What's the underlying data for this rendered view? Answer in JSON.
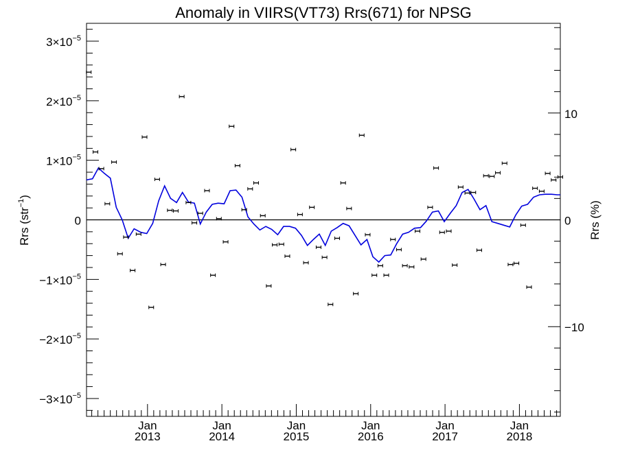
{
  "chart_data": {
    "type": "scatter",
    "title": "Anomaly in VIIRS(VT73) Rrs(671) for NPSG",
    "ylabel": "Rrs (str",
    "ylabel_sup": "−1",
    "ylabel_close": ")",
    "y2label": "Rrs (%)",
    "xlabel": "",
    "ylim": [
      -3.3e-05,
      3.3e-05
    ],
    "y2lim": [
      -18.4,
      18.4
    ],
    "xlim": [
      2012.18,
      2018.55
    ],
    "grid": false,
    "zero_line": true,
    "x_ticks": [
      {
        "x": 2013.0,
        "month": "Jan",
        "year": "2013"
      },
      {
        "x": 2014.0,
        "month": "Jan",
        "year": "2014"
      },
      {
        "x": 2015.0,
        "month": "Jan",
        "year": "2015"
      },
      {
        "x": 2016.0,
        "month": "Jan",
        "year": "2016"
      },
      {
        "x": 2017.0,
        "month": "Jan",
        "year": "2017"
      },
      {
        "x": 2018.0,
        "month": "Jan",
        "year": "2018"
      }
    ],
    "y_ticks": [
      {
        "v": 3e-05,
        "mant": "3×10",
        "exp": "−5"
      },
      {
        "v": 2e-05,
        "mant": "2×10",
        "exp": "−5"
      },
      {
        "v": 1e-05,
        "mant": "1×10",
        "exp": "−5"
      },
      {
        "v": 0,
        "mant": "0",
        "exp": ""
      },
      {
        "v": -1e-05,
        "mant": "−1×10",
        "exp": "−5"
      },
      {
        "v": -2e-05,
        "mant": "−2×10",
        "exp": "−5"
      },
      {
        "v": -3e-05,
        "mant": "−3×10",
        "exp": "−5"
      }
    ],
    "y2_ticks": [
      {
        "v": 10,
        "label": "10"
      },
      {
        "v": 0,
        "label": "0"
      },
      {
        "v": -10,
        "label": "−10"
      }
    ],
    "series": [
      {
        "kind": "points",
        "color": "#000000",
        "x": [
          2012.21,
          2012.3,
          2012.38,
          2012.46,
          2012.55,
          2012.63,
          2012.71,
          2012.8,
          2012.88,
          2012.96,
          2013.05,
          2013.13,
          2013.21,
          2013.3,
          2013.38,
          2013.46,
          2013.55,
          2013.63,
          2013.71,
          2013.8,
          2013.88,
          2013.96,
          2014.05,
          2014.13,
          2014.21,
          2014.3,
          2014.38,
          2014.46,
          2014.55,
          2014.63,
          2014.71,
          2014.8,
          2014.88,
          2014.96,
          2015.05,
          2015.13,
          2015.21,
          2015.3,
          2015.38,
          2015.46,
          2015.55,
          2015.63,
          2015.71,
          2015.8,
          2015.88,
          2015.96,
          2016.05,
          2016.13,
          2016.21,
          2016.3,
          2016.38,
          2016.46,
          2016.55,
          2016.63,
          2016.71,
          2016.8,
          2016.88,
          2016.96,
          2017.05,
          2017.13,
          2017.21,
          2017.3,
          2017.38,
          2017.46,
          2017.55,
          2017.63,
          2017.71,
          2017.8,
          2017.88,
          2017.96,
          2018.05,
          2018.13,
          2018.21,
          2018.3,
          2018.38,
          2018.46,
          2018.55
        ],
        "y": [
          2.48e-05,
          1.14e-05,
          8.6e-06,
          2.7e-06,
          9.7e-06,
          -5.7e-06,
          -2.9e-06,
          -8.5e-06,
          -2.4e-06,
          1.39e-05,
          -1.47e-05,
          6.8e-06,
          -7.5e-06,
          1.6e-06,
          1.5e-06,
          2.07e-05,
          2.9e-06,
          -5e-07,
          1.1e-06,
          4.9e-06,
          -9.3e-06,
          2e-07,
          -3.7e-06,
          1.57e-05,
          9.1e-06,
          1.7e-06,
          5.2e-06,
          6.2e-06,
          7e-07,
          -1.11e-05,
          -4.2e-06,
          -4.1e-06,
          -6.1e-06,
          1.18e-05,
          9e-07,
          -7.2e-06,
          2.1e-06,
          -4.6e-06,
          -6.3e-06,
          -1.42e-05,
          -3.1e-06,
          6.2e-06,
          1.9e-06,
          -1.24e-05,
          1.42e-05,
          -2.5e-06,
          -9.3e-06,
          -7.7e-06,
          -9.3e-06,
          -3.3e-06,
          -5e-06,
          -7.7e-06,
          -7.9e-06,
          -1.9e-06,
          -6.6e-06,
          2.1e-06,
          8.7e-06,
          -2.1e-06,
          -1.9e-06,
          -7.6e-06,
          5.5e-06,
          4.5e-06,
          4.6e-06,
          -5.1e-06,
          7.4e-06,
          7.3e-06,
          7.9e-06,
          9.5e-06,
          -7.5e-06,
          -7.3e-06,
          -9e-07,
          -1.13e-05,
          5.3e-06,
          4.8e-06,
          7.8e-06,
          6.7e-06,
          7.2e-06
        ]
      },
      {
        "kind": "line",
        "color": "#0000dd",
        "x": [
          2012.18,
          2012.26,
          2012.34,
          2012.42,
          2012.5,
          2012.58,
          2012.66,
          2012.74,
          2012.82,
          2012.91,
          2012.99,
          2013.07,
          2013.15,
          2013.23,
          2013.31,
          2013.39,
          2013.47,
          2013.55,
          2013.63,
          2013.71,
          2013.79,
          2013.87,
          2013.95,
          2014.03,
          2014.11,
          2014.19,
          2014.27,
          2014.35,
          2014.43,
          2014.51,
          2014.59,
          2014.67,
          2014.75,
          2014.83,
          2014.91,
          2014.99,
          2015.07,
          2015.15,
          2015.23,
          2015.31,
          2015.39,
          2015.47,
          2015.55,
          2015.63,
          2015.71,
          2015.79,
          2015.87,
          2015.95,
          2016.03,
          2016.11,
          2016.19,
          2016.27,
          2016.35,
          2016.43,
          2016.51,
          2016.59,
          2016.67,
          2016.75,
          2016.83,
          2016.91,
          2016.99,
          2017.07,
          2017.15,
          2017.23,
          2017.31,
          2017.39,
          2017.47,
          2017.55,
          2017.63,
          2017.71,
          2017.79,
          2017.87,
          2017.95,
          2018.03,
          2018.11,
          2018.19,
          2018.27,
          2018.35,
          2018.43,
          2018.51,
          2018.55
        ],
        "y": [
          6.7e-06,
          6.9e-06,
          8.7e-06,
          7.8e-06,
          7e-06,
          2.1e-06,
          0.0,
          -3.1e-06,
          -1.5e-06,
          -2.1e-06,
          -2.3e-06,
          -6e-07,
          3.2e-06,
          5.7e-06,
          3.6e-06,
          2.9e-06,
          4.6e-06,
          3e-06,
          2.8e-06,
          -7e-07,
          1.3e-06,
          2.6e-06,
          2.8e-06,
          2.7e-06,
          4.9e-06,
          5e-06,
          3.8e-06,
          5e-07,
          -7e-07,
          -1.7e-06,
          -1.1e-06,
          -1.6e-06,
          -2.5e-06,
          -1.1e-06,
          -1.1e-06,
          -1.4e-06,
          -2.6e-06,
          -4.3e-06,
          -3.3e-06,
          -2.4e-06,
          -4.3e-06,
          -1.9e-06,
          -1.3e-06,
          -6e-07,
          -1e-06,
          -2.6e-06,
          -4.2e-06,
          -3.3e-06,
          -6.2e-06,
          -7.1e-06,
          -6e-06,
          -5.9e-06,
          -4e-06,
          -2.4e-06,
          -2.1e-06,
          -1.4e-06,
          -1.3e-06,
          -2e-07,
          1.3e-06,
          1.5e-06,
          -3e-07,
          1.1e-06,
          2.4e-06,
          4.6e-06,
          5.1e-06,
          3.5e-06,
          1.7e-06,
          2.4e-06,
          -3e-07,
          -6e-07,
          -9e-07,
          -1.2e-06,
          8e-07,
          2.3e-06,
          2.6e-06,
          3.8e-06,
          4.2e-06,
          4.3e-06,
          4.3e-06,
          4.2e-06,
          4.2e-06
        ]
      }
    ]
  }
}
